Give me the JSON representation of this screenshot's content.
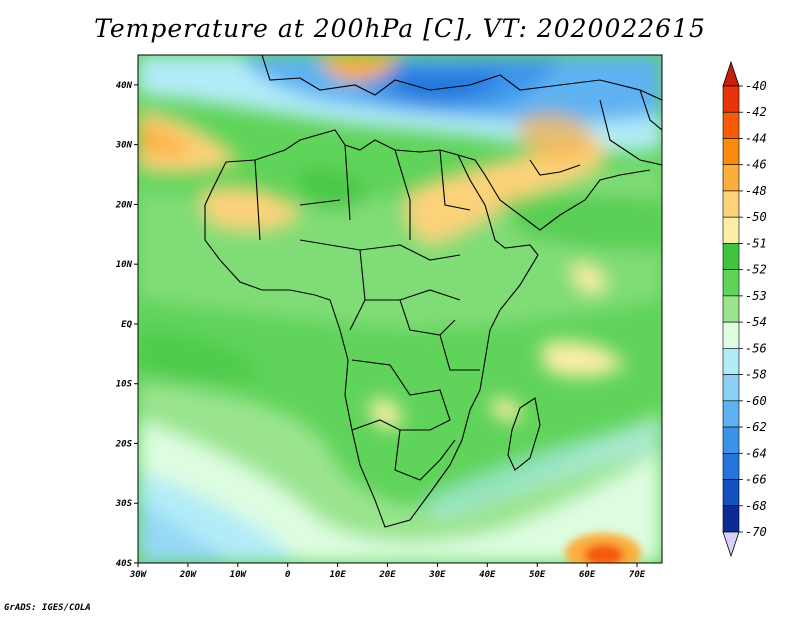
{
  "title": "Temperature at 200hPa [C], VT: 2020022615",
  "credit": "GrADS: IGES/COLA",
  "map": {
    "lon_range": [
      -30,
      75
    ],
    "lat_range": [
      -40,
      45
    ],
    "lon_ticks": [
      {
        "value": -30,
        "label": "30W"
      },
      {
        "value": -20,
        "label": "20W"
      },
      {
        "value": -10,
        "label": "10W"
      },
      {
        "value": 0,
        "label": "0"
      },
      {
        "value": 10,
        "label": "10E"
      },
      {
        "value": 20,
        "label": "20E"
      },
      {
        "value": 30,
        "label": "30E"
      },
      {
        "value": 40,
        "label": "40E"
      },
      {
        "value": 50,
        "label": "50E"
      },
      {
        "value": 60,
        "label": "60E"
      },
      {
        "value": 70,
        "label": "70E"
      }
    ],
    "lat_ticks": [
      {
        "value": 40,
        "label": "40N"
      },
      {
        "value": 30,
        "label": "30N"
      },
      {
        "value": 20,
        "label": "20N"
      },
      {
        "value": 10,
        "label": "10N"
      },
      {
        "value": 0,
        "label": "EQ"
      },
      {
        "value": -10,
        "label": "10S"
      },
      {
        "value": -20,
        "label": "20S"
      },
      {
        "value": -30,
        "label": "30S"
      },
      {
        "value": -40,
        "label": "40S"
      }
    ]
  },
  "colorbar": {
    "levels": [
      {
        "label": "-40",
        "color": "#e8340a"
      },
      {
        "label": "-42",
        "color": "#f65a0a"
      },
      {
        "label": "-44",
        "color": "#fa8a0c"
      },
      {
        "label": "-46",
        "color": "#fbae3c"
      },
      {
        "label": "-48",
        "color": "#fcd27a"
      },
      {
        "label": "-50",
        "color": "#fbeea6"
      },
      {
        "label": "-51",
        "color": "#3ec43e"
      },
      {
        "label": "-52",
        "color": "#5fd35a"
      },
      {
        "label": "-53",
        "color": "#9ae48e"
      },
      {
        "label": "-54",
        "color": "#ddfde0"
      },
      {
        "label": "-56",
        "color": "#b2ecf8"
      },
      {
        "label": "-58",
        "color": "#8ad0f6"
      },
      {
        "label": "-60",
        "color": "#5eb2f2"
      },
      {
        "label": "-62",
        "color": "#3c94ea"
      },
      {
        "label": "-64",
        "color": "#2474dc"
      },
      {
        "label": "-66",
        "color": "#1450be"
      },
      {
        "label": "-68",
        "color": "#0a2c94"
      },
      {
        "label": "-70",
        "color": "#d8d0fa"
      }
    ],
    "top_cap_color": "#c81e0a"
  }
}
